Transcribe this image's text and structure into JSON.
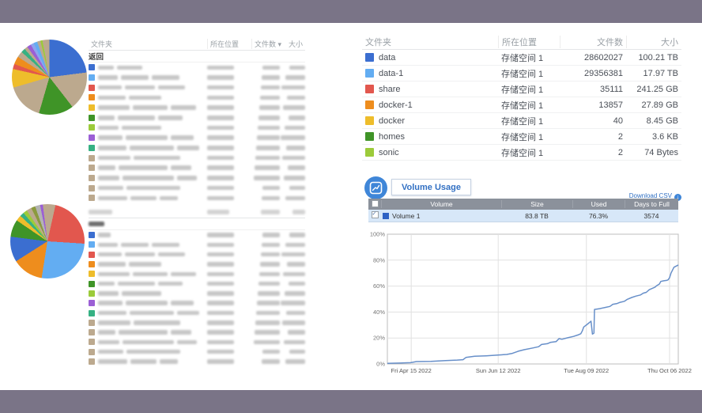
{
  "background_color": "#7a7487",
  "panel_color": "#ffffff",
  "palette": {
    "blue": "#3b6ed0",
    "sky": "#63adf2",
    "red": "#e2574e",
    "orange": "#ee8d1d",
    "yellow": "#eebd2b",
    "green": "#3f9427",
    "lime": "#9ccb3a",
    "purple": "#9b5fd5",
    "teal": "#36b183",
    "tan": "#bca98e",
    "periwinkle": "#8ea4ee",
    "olive": "#8b9a3e",
    "gray": "#b3b3b3",
    "volume_blue": "#2e62c4",
    "line_blue": "#678fc9",
    "accent_blue": "#3270c3"
  },
  "left": {
    "top_pie": {
      "type": "pie",
      "segments": [
        {
          "color": "blue",
          "value": 23
        },
        {
          "color": "tan",
          "value": 16.5
        },
        {
          "color": "green",
          "value": 15
        },
        {
          "color": "tan",
          "value": 16
        },
        {
          "color": "yellow",
          "value": 8
        },
        {
          "color": "red",
          "value": 2.2
        },
        {
          "color": "orange",
          "value": 3.4
        },
        {
          "color": "tan",
          "value": 2.6
        },
        {
          "color": "teal",
          "value": 1.8
        },
        {
          "color": "tan",
          "value": 1.4
        },
        {
          "color": "purple",
          "value": 1.8
        },
        {
          "color": "periwinkle",
          "value": 1.4
        },
        {
          "color": "sky",
          "value": 1.6
        },
        {
          "color": "tan",
          "value": 1.4
        },
        {
          "color": "lime",
          "value": 0.9
        },
        {
          "color": "tan",
          "value": 3.0
        }
      ]
    },
    "bottom_pie": {
      "type": "pie",
      "segments": [
        {
          "color": "tan",
          "value": 3.5
        },
        {
          "color": "red",
          "value": 22.5
        },
        {
          "color": "sky",
          "value": 26.5
        },
        {
          "color": "orange",
          "value": 13.5
        },
        {
          "color": "blue",
          "value": 11
        },
        {
          "color": "green",
          "value": 7.5
        },
        {
          "color": "yellow",
          "value": 2.5
        },
        {
          "color": "teal",
          "value": 1.8
        },
        {
          "color": "lime",
          "value": 1.8
        },
        {
          "color": "tan",
          "value": 2.2
        },
        {
          "color": "olive",
          "value": 1.8
        },
        {
          "color": "gray",
          "value": 2.2
        },
        {
          "color": "purple",
          "value": 1.2
        },
        {
          "color": "tan",
          "value": 2.0
        }
      ]
    },
    "top_table": {
      "headers": [
        "文件夹",
        "所在位置",
        "文件数",
        "大小"
      ],
      "sort_indicator": "▾",
      "back_label": "返回",
      "redacted": true,
      "rows": [
        {
          "color": "blue"
        },
        {
          "color": "sky"
        },
        {
          "color": "red"
        },
        {
          "color": "orange"
        },
        {
          "color": "yellow"
        },
        {
          "color": "green"
        },
        {
          "color": "lime"
        },
        {
          "color": "purple"
        },
        {
          "color": "teal"
        },
        {
          "color": "tan"
        },
        {
          "color": "tan"
        },
        {
          "color": "tan"
        },
        {
          "color": "tan"
        },
        {
          "color": "tan"
        }
      ]
    },
    "bottom_table": {
      "redacted_header": true,
      "redacted_back": true,
      "redacted": true,
      "rows": [
        {
          "color": "blue",
          "short": true
        },
        {
          "color": "sky"
        },
        {
          "color": "red"
        },
        {
          "color": "orange"
        },
        {
          "color": "yellow"
        },
        {
          "color": "green"
        },
        {
          "color": "lime"
        },
        {
          "color": "purple"
        },
        {
          "color": "teal"
        },
        {
          "color": "tan"
        },
        {
          "color": "tan"
        },
        {
          "color": "tan"
        },
        {
          "color": "tan"
        },
        {
          "color": "tan"
        }
      ]
    }
  },
  "right": {
    "folder_table": {
      "headers": [
        "文件夹",
        "所在位置",
        "文件数",
        "大小"
      ],
      "rows": [
        {
          "name": "data",
          "color": "blue",
          "location": "存储空间 1",
          "files": "28602027",
          "size": "100.21 TB"
        },
        {
          "name": "data-1",
          "color": "sky",
          "location": "存储空间 1",
          "files": "29356381",
          "size": "17.97 TB"
        },
        {
          "name": "share",
          "color": "red",
          "location": "存储空间 1",
          "files": "35111",
          "size": "241.25 GB"
        },
        {
          "name": "docker-1",
          "color": "orange",
          "location": "存储空间 1",
          "files": "13857",
          "size": "27.89 GB"
        },
        {
          "name": "docker",
          "color": "yellow",
          "location": "存储空间 1",
          "files": "40",
          "size": "8.45 GB"
        },
        {
          "name": "homes",
          "color": "green",
          "location": "存储空间 1",
          "files": "2",
          "size": "3.6 KB"
        },
        {
          "name": "sonic",
          "color": "lime",
          "location": "存储空间 1",
          "files": "2",
          "size": "74 Bytes"
        }
      ]
    },
    "volume_usage": {
      "title": "Volume Usage",
      "download_label": "Download CSV",
      "download_icon_glyph": "↓",
      "table": {
        "headers": [
          "Volume",
          "Size",
          "Used",
          "Days to Full"
        ],
        "rows": [
          {
            "name": "Volume 1",
            "checked": true,
            "size": "83.8 TB",
            "used": "76.3%",
            "days_to_full": "3574"
          }
        ]
      }
    }
  },
  "chart_data": {
    "type": "line",
    "title": "Volume Usage",
    "series": [
      {
        "name": "Volume 1",
        "color": "#678fc9"
      }
    ],
    "ylim": [
      0,
      100
    ],
    "yticks": [
      {
        "v": 0,
        "label": "0%"
      },
      {
        "v": 20,
        "label": "20%"
      },
      {
        "v": 40,
        "label": "40%"
      },
      {
        "v": 60,
        "label": "60%"
      },
      {
        "v": 80,
        "label": "80%"
      },
      {
        "v": 100,
        "label": "100%"
      }
    ],
    "xticks": [
      {
        "t": 0.082,
        "label": "Fri Apr 15 2022"
      },
      {
        "t": 0.381,
        "label": "Sun Jun 12 2022"
      },
      {
        "t": 0.684,
        "label": "Tue Aug 09 2022"
      },
      {
        "t": 0.97,
        "label": "Thu Oct 06 2022"
      }
    ],
    "grid": true,
    "points": [
      [
        0.0,
        0.5
      ],
      [
        0.04,
        0.7
      ],
      [
        0.08,
        1.0
      ],
      [
        0.1,
        1.8
      ],
      [
        0.15,
        2.0
      ],
      [
        0.2,
        2.6
      ],
      [
        0.24,
        3.0
      ],
      [
        0.26,
        3.3
      ],
      [
        0.27,
        5.0
      ],
      [
        0.3,
        5.9
      ],
      [
        0.34,
        6.3
      ],
      [
        0.38,
        6.8
      ],
      [
        0.41,
        7.3
      ],
      [
        0.43,
        8.2
      ],
      [
        0.45,
        9.8
      ],
      [
        0.47,
        11.0
      ],
      [
        0.5,
        12.3
      ],
      [
        0.52,
        13.3
      ],
      [
        0.53,
        15.0
      ],
      [
        0.55,
        15.6
      ],
      [
        0.56,
        16.6
      ],
      [
        0.58,
        17.2
      ],
      [
        0.59,
        19.5
      ],
      [
        0.6,
        19.0
      ],
      [
        0.62,
        20.2
      ],
      [
        0.64,
        21.2
      ],
      [
        0.655,
        22.3
      ],
      [
        0.665,
        23.3
      ],
      [
        0.67,
        25.5
      ],
      [
        0.675,
        28.5
      ],
      [
        0.685,
        30.2
      ],
      [
        0.695,
        32.0
      ],
      [
        0.7,
        33.0
      ],
      [
        0.705,
        23.0
      ],
      [
        0.71,
        23.8
      ],
      [
        0.712,
        42.0
      ],
      [
        0.73,
        42.6
      ],
      [
        0.75,
        43.6
      ],
      [
        0.765,
        44.3
      ],
      [
        0.775,
        46.0
      ],
      [
        0.79,
        46.6
      ],
      [
        0.8,
        47.5
      ],
      [
        0.815,
        48.3
      ],
      [
        0.825,
        49.8
      ],
      [
        0.84,
        51.2
      ],
      [
        0.855,
        52.3
      ],
      [
        0.87,
        53.2
      ],
      [
        0.88,
        54.6
      ],
      [
        0.89,
        55.2
      ],
      [
        0.9,
        57.2
      ],
      [
        0.91,
        58.2
      ],
      [
        0.92,
        59.2
      ],
      [
        0.925,
        60.2
      ],
      [
        0.935,
        61.6
      ],
      [
        0.94,
        63.6
      ],
      [
        0.95,
        64.1
      ],
      [
        0.96,
        64.4
      ],
      [
        0.965,
        64.8
      ],
      [
        0.97,
        66.5
      ],
      [
        0.975,
        70.0
      ],
      [
        0.985,
        74.5
      ],
      [
        1.0,
        76.3
      ]
    ]
  }
}
